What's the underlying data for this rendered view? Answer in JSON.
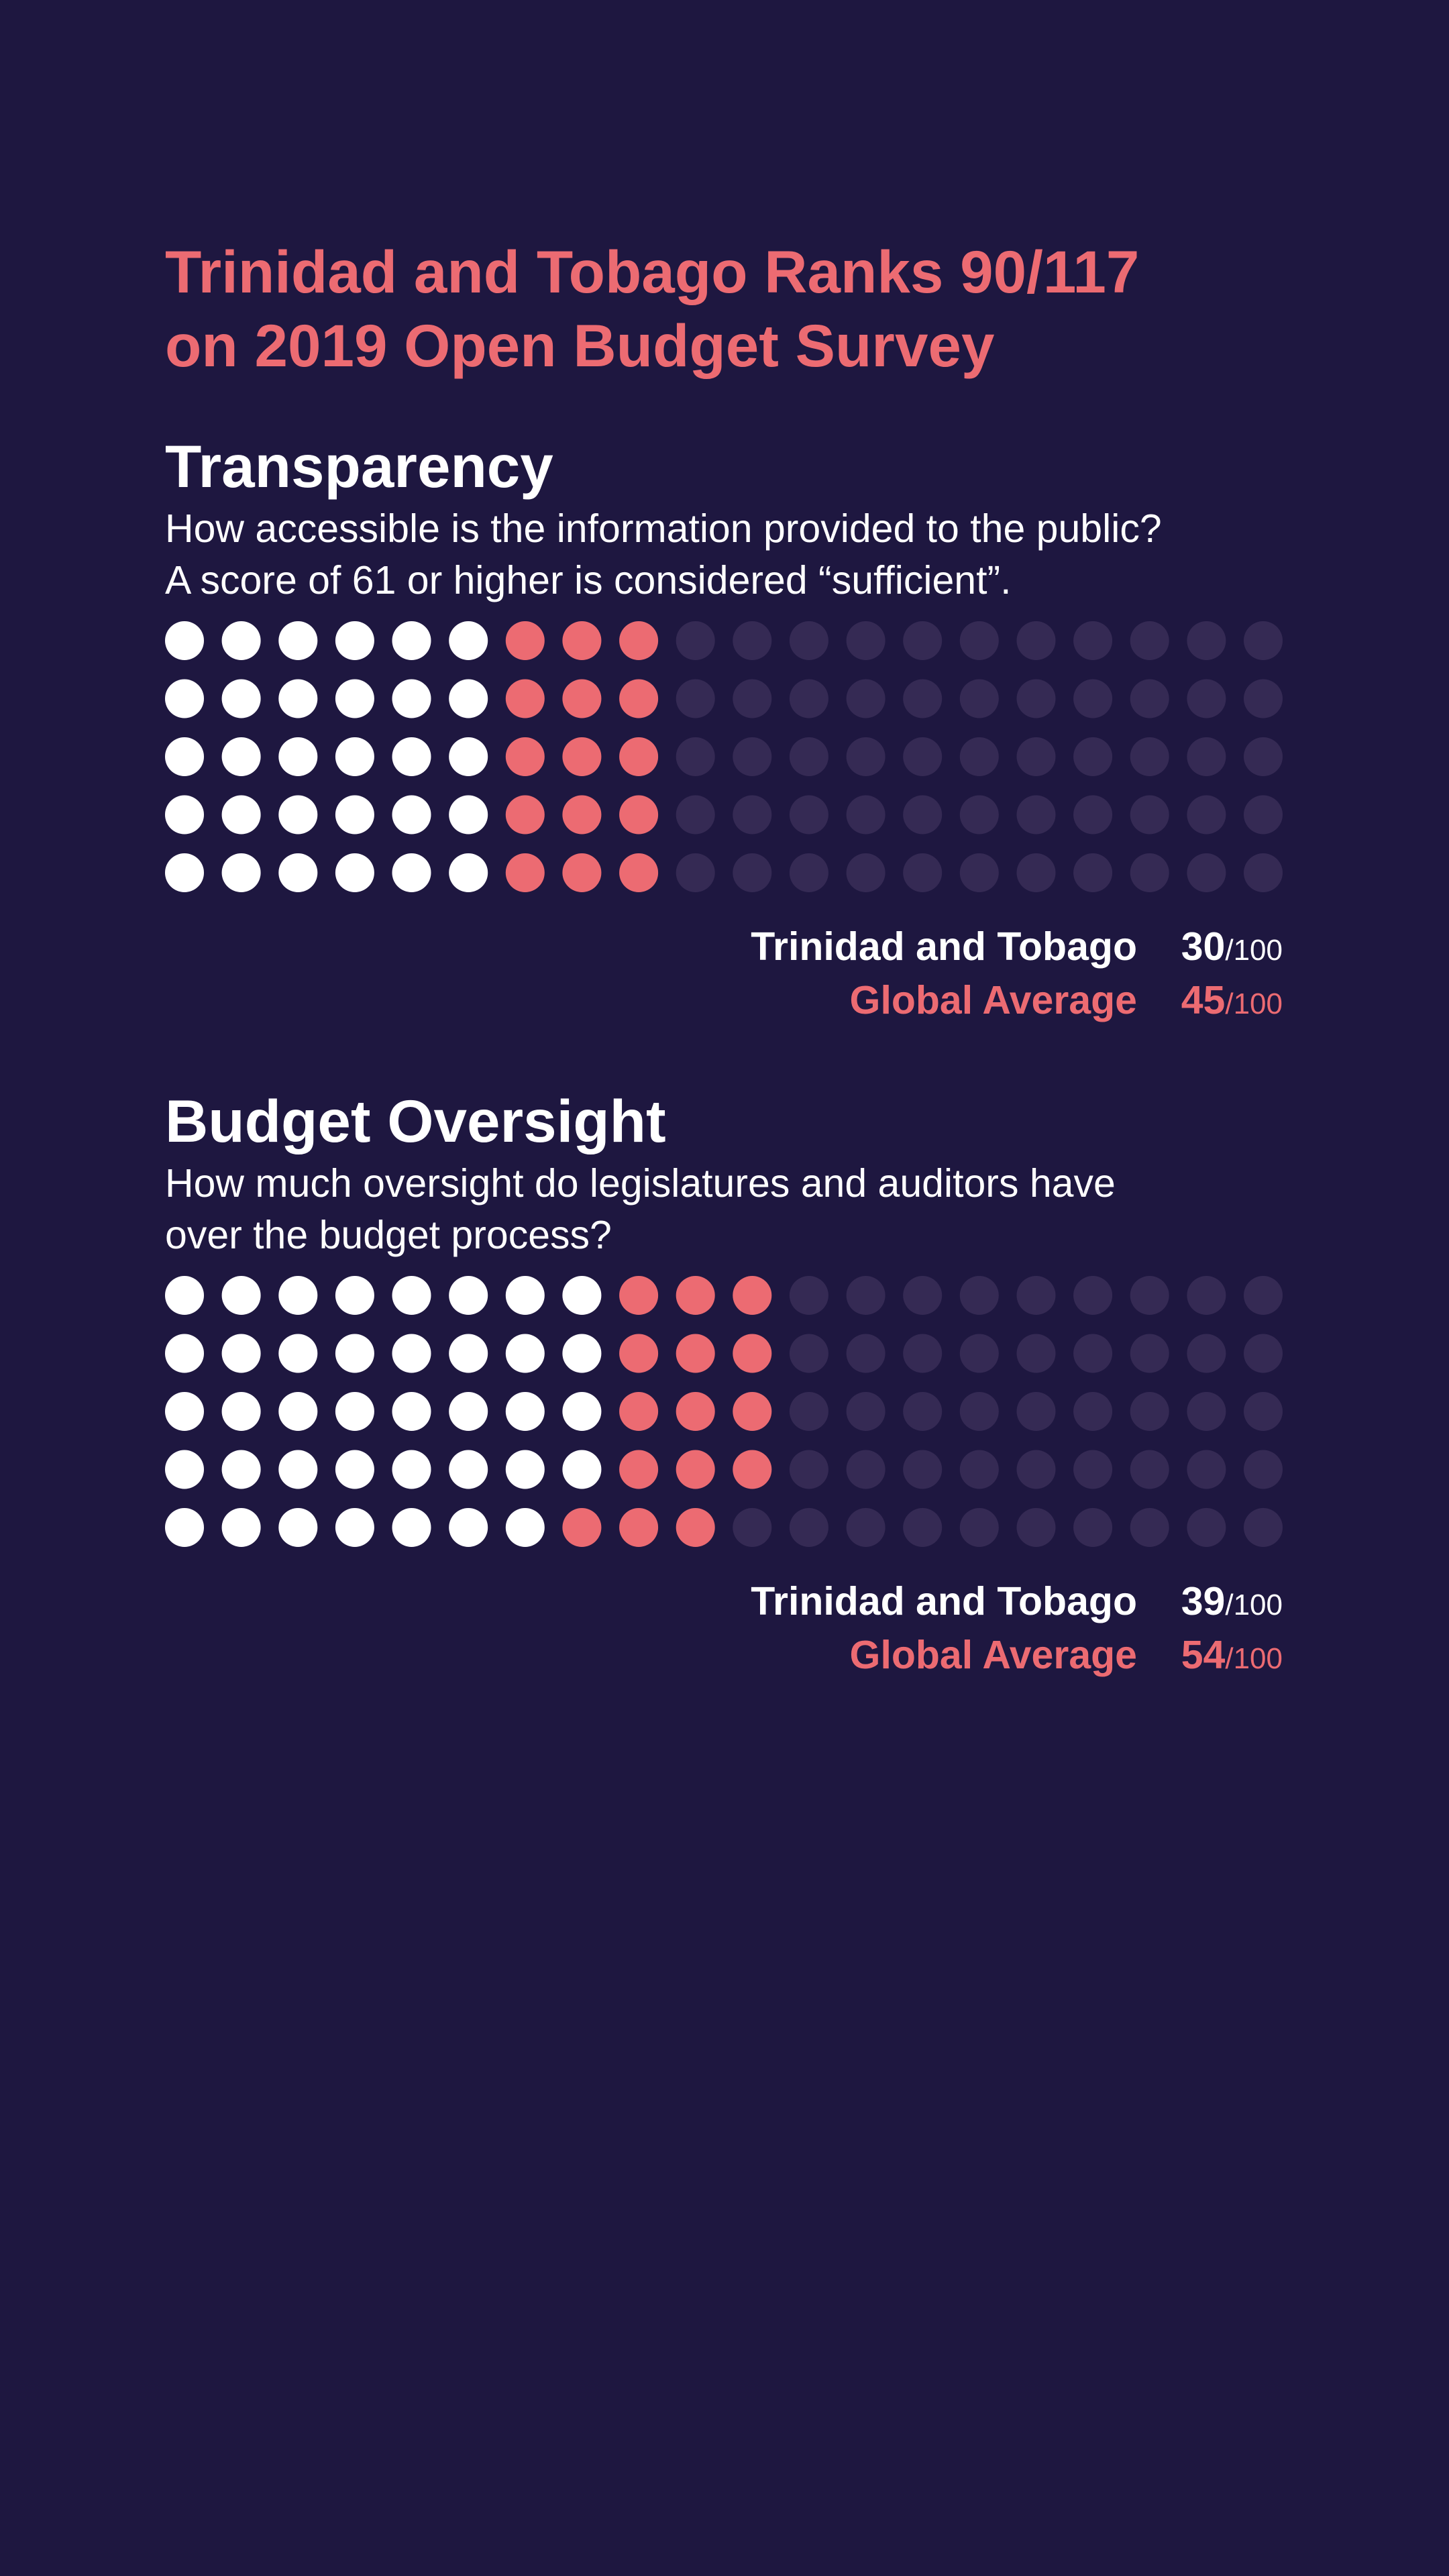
{
  "colors": {
    "background": "#1e1740",
    "country": "#ffffff",
    "global": "#ec6b72",
    "empty": "#352a54"
  },
  "header": {
    "title_line1": "Trinidad and Tobago Ranks 90/117",
    "title_line2": "on 2019 Open Budget Survey"
  },
  "chart_data": [
    {
      "type": "waffle",
      "title": "Transparency",
      "subtitle_line1": "How accessible is the information provided to the public?",
      "subtitle_line2": "A score of 61 or higher is considered “sufficient”.",
      "rows": 5,
      "columns": 20,
      "max": 100,
      "series": [
        {
          "name": "Trinidad and Tobago",
          "value": 30,
          "display_value": "30",
          "denominator": "/100"
        },
        {
          "name": "Global Average",
          "value": 45,
          "display_value": "45",
          "denominator": "/100"
        }
      ]
    },
    {
      "type": "waffle",
      "title": "Budget Oversight",
      "subtitle_line1": "How much oversight do legislatures and auditors have",
      "subtitle_line2": "over the budget process?",
      "rows": 5,
      "columns": 20,
      "max": 100,
      "series": [
        {
          "name": "Trinidad and Tobago",
          "value": 39,
          "display_value": "39",
          "denominator": "/100"
        },
        {
          "name": "Global Average",
          "value": 54,
          "display_value": "54",
          "denominator": "/100"
        }
      ]
    }
  ]
}
